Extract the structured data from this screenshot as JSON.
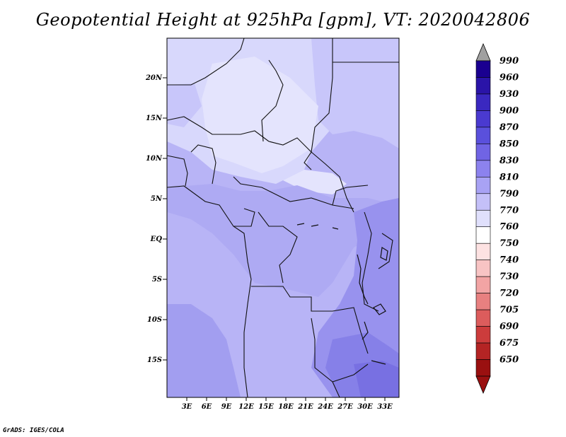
{
  "title": "Geopotential Height at 925hPa [gpm], VT: 2020042806",
  "footer": "GrADS: IGES/COLA",
  "map": {
    "lat_labels": [
      "20N",
      "15N",
      "10N",
      "5N",
      "EQ",
      "5S",
      "10S",
      "15S"
    ],
    "lon_labels": [
      "3E",
      "6E",
      "9E",
      "12E",
      "15E",
      "18E",
      "21E",
      "24E",
      "27E",
      "30E",
      "33E"
    ],
    "lat_range": [
      "18S",
      "24N"
    ],
    "lon_range": [
      "0",
      "34E"
    ]
  },
  "colorbar": {
    "labels": [
      "990",
      "960",
      "930",
      "900",
      "870",
      "850",
      "830",
      "810",
      "790",
      "770",
      "760",
      "750",
      "740",
      "730",
      "720",
      "705",
      "690",
      "675",
      "650"
    ],
    "colors": [
      "#1a0090",
      "#2a14a8",
      "#3a28c0",
      "#4a3ad0",
      "#5a50dc",
      "#7064e4",
      "#8c82ee",
      "#a8a2f4",
      "#c4c0f8",
      "#e0e0fc",
      "#ffffff",
      "#fde2e2",
      "#f8c4c4",
      "#f2a4a4",
      "#e88080",
      "#dc5c5c",
      "#cc3c3c",
      "#b42424",
      "#9a1010"
    ]
  }
}
